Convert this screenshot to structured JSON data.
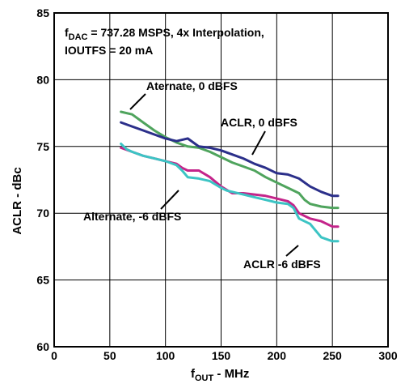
{
  "chart_data": {
    "type": "line",
    "xlabel_main": "f",
    "xlabel_sub": "OUT",
    "xlabel_rest": " - MHz",
    "ylabel": "ACLR - dBc",
    "xlim": [
      0,
      300
    ],
    "ylim": [
      60,
      85
    ],
    "grid": true,
    "x_ticks": [
      "0",
      "50",
      "100",
      "150",
      "200",
      "250",
      "300"
    ],
    "y_ticks": [
      "60",
      "65",
      "70",
      "75",
      "80",
      "85"
    ],
    "note_line1_main": "f",
    "note_line1_sub": "DAC",
    "note_line1_rest": " = 737.28 MSPS, 4x Interpolation,",
    "note_line2": "IOUTFS = 20 mA",
    "series": [
      {
        "name": "ACLR, 0 dBFS",
        "color": "#2b2f8a",
        "x": [
          60,
          70,
          80,
          90,
          100,
          110,
          115,
          120,
          125,
          130,
          140,
          150,
          160,
          170,
          180,
          190,
          200,
          210,
          220,
          230,
          240,
          250,
          255
        ],
        "y": [
          76.8,
          76.5,
          76.2,
          75.9,
          75.6,
          75.4,
          75.5,
          75.6,
          75.3,
          75.0,
          74.9,
          74.7,
          74.4,
          74.1,
          73.7,
          73.4,
          73.0,
          72.9,
          72.6,
          72.0,
          71.6,
          71.3,
          71.3
        ]
      },
      {
        "name": "Aternate, 0 dBFS",
        "color": "#4fa45d",
        "x": [
          60,
          70,
          80,
          90,
          100,
          110,
          120,
          130,
          140,
          150,
          160,
          170,
          180,
          190,
          200,
          205,
          210,
          220,
          225,
          230,
          240,
          250,
          255
        ],
        "y": [
          77.6,
          77.4,
          76.8,
          76.2,
          75.7,
          75.3,
          75.0,
          74.9,
          74.6,
          74.2,
          73.8,
          73.5,
          73.2,
          72.7,
          72.3,
          72.1,
          71.9,
          71.5,
          71.0,
          70.7,
          70.5,
          70.4,
          70.4
        ]
      },
      {
        "name": "Alternate, -6 dBFS",
        "color": "#c4248a",
        "x": [
          60,
          70,
          80,
          90,
          100,
          110,
          115,
          120,
          130,
          140,
          150,
          160,
          170,
          180,
          190,
          200,
          210,
          215,
          220,
          230,
          240,
          250,
          255
        ],
        "y": [
          74.9,
          74.6,
          74.3,
          74.1,
          73.9,
          73.7,
          73.4,
          73.2,
          73.2,
          72.7,
          72.0,
          71.5,
          71.5,
          71.4,
          71.3,
          71.1,
          70.9,
          70.6,
          70.0,
          69.6,
          69.4,
          69.0,
          69.0
        ]
      },
      {
        "name": "ACLR -6 dBFS",
        "color": "#3cc4c4",
        "x": [
          60,
          65,
          70,
          80,
          90,
          100,
          110,
          115,
          120,
          130,
          140,
          150,
          155,
          160,
          170,
          180,
          190,
          200,
          210,
          215,
          220,
          230,
          235,
          240,
          250,
          255
        ],
        "y": [
          75.2,
          74.8,
          74.6,
          74.3,
          74.1,
          73.9,
          73.6,
          73.2,
          72.7,
          72.6,
          72.4,
          71.9,
          71.7,
          71.6,
          71.4,
          71.2,
          71.0,
          70.8,
          70.7,
          70.4,
          69.6,
          69.2,
          68.7,
          68.2,
          67.9,
          67.9
        ]
      }
    ]
  }
}
